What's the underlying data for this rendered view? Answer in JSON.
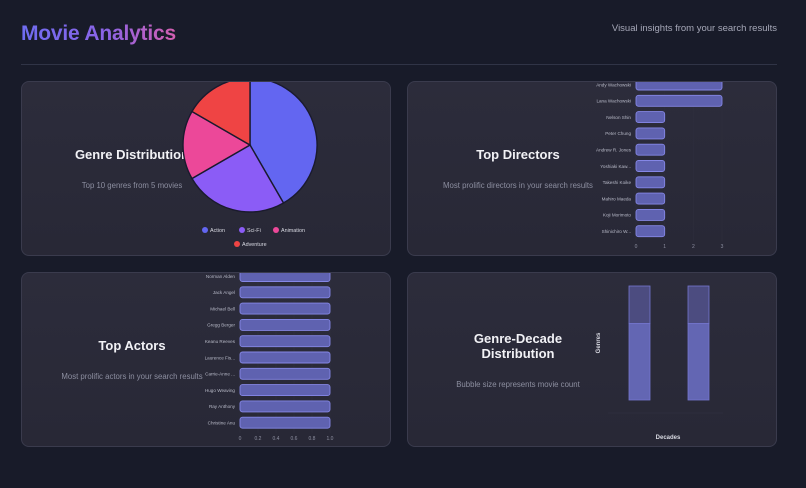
{
  "header": {
    "title": "Movie Analytics",
    "subtitle": "Visual insights from your search results"
  },
  "cards": {
    "genre": {
      "title": "Genre Distribution",
      "description": "Top 10 genres from 5 movies"
    },
    "directors": {
      "title": "Top Directors",
      "description": "Most prolific directors in your search results"
    },
    "actors": {
      "title": "Top Actors",
      "description": "Most prolific actors in your search results"
    },
    "genre_decade": {
      "title": "Genre-Decade Distribution",
      "description": "Bubble size represents movie count",
      "x_axis_title": "Decades",
      "y_axis_title": "Genres"
    }
  },
  "colors": {
    "page_bg": "#181b29",
    "card_bg": "#2a2a38",
    "action": "#6366f1",
    "scifi": "#8b5cf6",
    "animation": "#ec4899",
    "adventure": "#ef4444",
    "bar_fill": "#5f62b0",
    "bar_stroke": "#8587e6"
  },
  "chart_data": [
    {
      "type": "pie",
      "title": "Genre Distribution",
      "subtitle": "Top 10 genres from 5 movies",
      "categories": [
        "Action",
        "Sci-Fi",
        "Animation",
        "Adventure"
      ],
      "values": [
        5,
        3,
        2,
        2
      ],
      "colors": [
        "#6366f1",
        "#8b5cf6",
        "#ec4899",
        "#ef4444"
      ],
      "legend_position": "bottom"
    },
    {
      "type": "bar",
      "orientation": "horizontal",
      "title": "Top Directors",
      "subtitle": "Most prolific directors in your search results",
      "categories": [
        "Andy Wachowski",
        "Lana Wachowski",
        "Nelson Shin",
        "Peter Chung",
        "Andrew R. Jones",
        "Yoshiaki Kaw...",
        "Takeshi Koike",
        "Mahiro Maeda",
        "Koji Morimoto",
        "Shinichiro W..."
      ],
      "values": [
        3,
        3,
        1,
        1,
        1,
        1,
        1,
        1,
        1,
        1
      ],
      "x_ticks": [
        "0",
        "1",
        "2",
        "3"
      ],
      "xlim": [
        0,
        3
      ]
    },
    {
      "type": "bar",
      "orientation": "horizontal",
      "title": "Top Actors",
      "subtitle": "Most prolific actors in your search results",
      "categories": [
        "Norman Alden",
        "Jack Angel",
        "Michael Bell",
        "Gregg Berger",
        "Keanu Reeves",
        "Laurence Fis...",
        "Carrie-Anne ...",
        "Hugo Weaving",
        "Ray Anthony",
        "Christine Anu"
      ],
      "values": [
        1,
        1,
        1,
        1,
        1,
        1,
        1,
        1,
        1,
        1
      ],
      "x_ticks": [
        "0",
        "0.2",
        "0.4",
        "0.6",
        "0.8",
        "1.0"
      ],
      "xlim": [
        0,
        1
      ]
    },
    {
      "type": "bar",
      "title": "Genre-Decade Distribution",
      "subtitle": "Bubble size represents movie count",
      "xlabel": "Decades",
      "ylabel": "Genres",
      "series_count": 2,
      "bars": [
        {
          "lower_fraction": 0.67,
          "upper_fraction": 0.33
        },
        {
          "lower_fraction": 0.67,
          "upper_fraction": 0.33
        }
      ]
    }
  ]
}
